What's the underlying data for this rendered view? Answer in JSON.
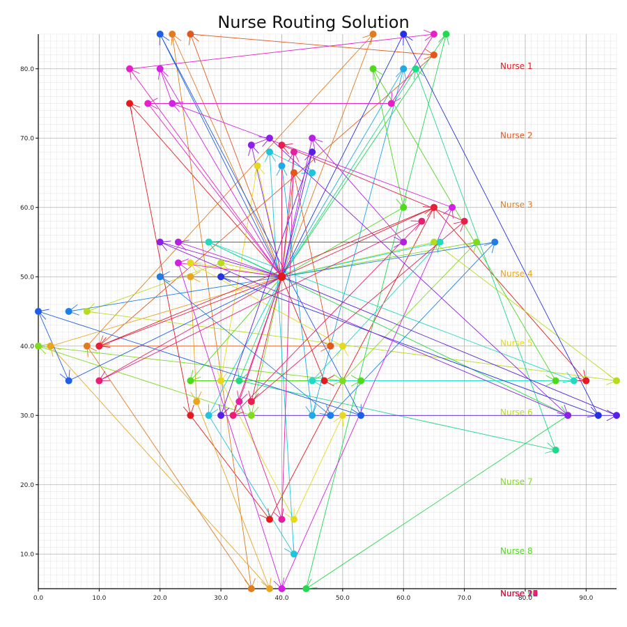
{
  "chart_data": {
    "type": "scatter",
    "title": "Nurse Routing Solution",
    "xlabel": "",
    "ylabel": "",
    "xlim": [
      0,
      95
    ],
    "ylim": [
      5,
      85
    ],
    "x_ticks": [
      0,
      10,
      20,
      30,
      40,
      50,
      60,
      70,
      80,
      90
    ],
    "x_tick_labels": [
      "0.0",
      "10.0",
      "20.0",
      "30.0",
      "40.0",
      "50.0",
      "60.0",
      "70.0",
      "80.0",
      "90.0"
    ],
    "y_ticks": [
      10,
      20,
      30,
      40,
      50,
      60,
      70,
      80
    ],
    "y_tick_labels": [
      "10.0",
      "20.0",
      "30.0",
      "40.0",
      "50.0",
      "60.0",
      "70.0",
      "80.0"
    ],
    "grid": true,
    "legend_placement": "right, inside plot",
    "depot": [
      40,
      50
    ],
    "series": [
      {
        "name": "Nurse 1",
        "color": "#e41a1c",
        "points": [
          [
            15,
            75
          ],
          [
            25,
            30
          ],
          [
            38,
            15
          ],
          [
            65,
            60
          ],
          [
            90,
            35
          ],
          [
            47,
            35
          ]
        ]
      },
      {
        "name": "Nurse 2",
        "color": "#e4571a",
        "points": [
          [
            25,
            85
          ],
          [
            65,
            82
          ],
          [
            10,
            40
          ],
          [
            48,
            40
          ],
          [
            42,
            65
          ]
        ]
      },
      {
        "name": "Nurse 3",
        "color": "#e07b1f",
        "points": [
          [
            22,
            85
          ],
          [
            35,
            5
          ],
          [
            8,
            40
          ],
          [
            55,
            85
          ]
        ]
      },
      {
        "name": "Nurse 4",
        "color": "#e8a520",
        "points": [
          [
            25,
            50
          ],
          [
            26,
            32
          ],
          [
            38,
            5
          ],
          [
            2,
            40
          ]
        ]
      },
      {
        "name": "Nurse 5",
        "color": "#e6d91d",
        "points": [
          [
            36,
            66
          ],
          [
            30,
            35
          ],
          [
            42,
            15
          ],
          [
            50,
            30
          ],
          [
            50,
            40
          ],
          [
            25,
            52
          ]
        ]
      },
      {
        "name": "Nurse 6",
        "color": "#b6dc1c",
        "points": [
          [
            30,
            52
          ],
          [
            8,
            45
          ],
          [
            95,
            35
          ],
          [
            65,
            55
          ]
        ]
      },
      {
        "name": "Nurse 7",
        "color": "#7fdb1f",
        "points": [
          [
            35,
            30
          ],
          [
            0,
            40
          ],
          [
            50,
            35
          ],
          [
            72,
            55
          ]
        ]
      },
      {
        "name": "Nurse 8",
        "color": "#4ed91c",
        "points": [
          [
            25,
            35
          ],
          [
            53,
            35
          ],
          [
            85,
            35
          ],
          [
            55,
            80
          ],
          [
            60,
            60
          ]
        ]
      },
      {
        "name": "Nurse 9",
        "color": "#22d94e",
        "points": [
          [
            28,
            55
          ],
          [
            87,
            30
          ],
          [
            44,
            5
          ],
          [
            67,
            85
          ]
        ]
      },
      {
        "name": "Nurse 10",
        "color": "#1ed98a",
        "points": [
          [
            33,
            35
          ],
          [
            85,
            25
          ],
          [
            62,
            80
          ]
        ]
      },
      {
        "name": "Nurse 11",
        "color": "#22d9c1",
        "points": [
          [
            28,
            55
          ],
          [
            88,
            35
          ],
          [
            45,
            35
          ],
          [
            66,
            55
          ]
        ]
      },
      {
        "name": "Nurse 12",
        "color": "#1ec5dc",
        "points": [
          [
            28,
            30
          ],
          [
            42,
            10
          ],
          [
            38,
            68
          ],
          [
            45,
            65
          ]
        ]
      },
      {
        "name": "Nurse 13",
        "color": "#1fa9e6",
        "points": [
          [
            40,
            66
          ],
          [
            45,
            30
          ],
          [
            60,
            80
          ]
        ]
      },
      {
        "name": "Nurse 14",
        "color": "#1f7ee6",
        "points": [
          [
            20,
            50
          ],
          [
            48,
            30
          ],
          [
            75,
            55
          ],
          [
            5,
            45
          ]
        ]
      },
      {
        "name": "Nurse 15",
        "color": "#1f5ee6",
        "points": [
          [
            20,
            85
          ],
          [
            53,
            30
          ],
          [
            0,
            45
          ],
          [
            5,
            35
          ]
        ]
      },
      {
        "name": "Nurse 16",
        "color": "#2330e6",
        "points": [
          [
            30,
            50
          ],
          [
            92,
            30
          ],
          [
            60,
            85
          ]
        ]
      },
      {
        "name": "Nurse 17",
        "color": "#5a1fe6",
        "points": [
          [
            45,
            68
          ],
          [
            30,
            30
          ],
          [
            95,
            30
          ]
        ]
      },
      {
        "name": "Nurse 18",
        "color": "#8e1fe6",
        "points": [
          [
            35,
            69
          ],
          [
            38,
            70
          ],
          [
            87,
            30
          ],
          [
            20,
            55
          ]
        ]
      },
      {
        "name": "Nurse 19",
        "color": "#b51fe6",
        "points": [
          [
            23,
            55
          ],
          [
            60,
            55
          ],
          [
            45,
            70
          ]
        ]
      },
      {
        "name": "Nurse 20",
        "color": "#d51fe6",
        "points": [
          [
            23,
            52
          ],
          [
            40,
            5
          ],
          [
            68,
            60
          ],
          [
            22,
            75
          ],
          [
            20,
            80
          ]
        ]
      },
      {
        "name": "Nurse 21",
        "color": "#e61fc9",
        "points": [
          [
            15,
            80
          ],
          [
            65,
            85
          ],
          [
            58,
            75
          ],
          [
            18,
            75
          ]
        ]
      },
      {
        "name": "Nurse 22",
        "color": "#e61f9f",
        "points": [
          [
            33,
            32
          ],
          [
            40,
            15
          ],
          [
            42,
            68
          ]
        ]
      },
      {
        "name": "Nurse 23",
        "color": "#e61f72",
        "points": [
          [
            10,
            35
          ],
          [
            63,
            58
          ],
          [
            32,
            30
          ]
        ]
      },
      {
        "name": "Nurse 24",
        "color": "#e61f4f",
        "points": [
          [
            35,
            32
          ],
          [
            70,
            58
          ],
          [
            40,
            69
          ]
        ]
      },
      {
        "name": "Nurse 25",
        "color": "#e61f3a",
        "points": [
          [
            65,
            60
          ],
          [
            10,
            40
          ]
        ]
      }
    ],
    "legend_entries": [
      "Nurse 1",
      "Nurse 2",
      "Nurse 3",
      "Nurse 4",
      "Nurse 5",
      "Nurse 6",
      "Nurse 7",
      "Nurse 8",
      "Nurse 9",
      "Nurse 10",
      "Nurse 11",
      "Nurse 12",
      "Nurse 13",
      "Nurse 14",
      "Nurse 15",
      "Nurse 16",
      "Nurse 17",
      "Nurse 18",
      "Nurse 19",
      "Nurse 20",
      "Nurse 21",
      "Nurse 22",
      "Nurse 23",
      "Nurse 24",
      "Nurse 25"
    ]
  }
}
